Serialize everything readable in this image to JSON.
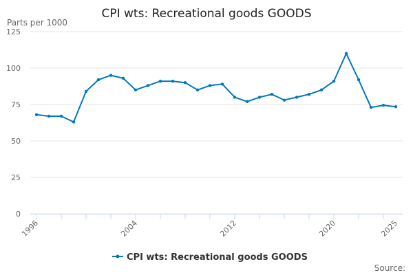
{
  "chart_data": {
    "type": "line",
    "title": "CPI wts: Recreational goods GOODS",
    "ylabel": "Parts per 1000",
    "xlabel": "",
    "source_label": "Source:",
    "ylim": [
      0,
      125
    ],
    "yticks": [
      0,
      25,
      50,
      75,
      100,
      125
    ],
    "xlim": [
      1996,
      2025
    ],
    "xticks": [
      1996,
      2004,
      2012,
      2020,
      2025
    ],
    "grid": true,
    "legend_position": "bottom",
    "color": "#0077c0",
    "series": [
      {
        "name": "CPI wts: Recreational goods GOODS",
        "x": [
          1996,
          1997,
          1998,
          1999,
          2000,
          2001,
          2002,
          2003,
          2004,
          2005,
          2006,
          2007,
          2008,
          2009,
          2010,
          2011,
          2012,
          2013,
          2014,
          2015,
          2016,
          2017,
          2018,
          2019,
          2020,
          2021,
          2022,
          2023,
          2024,
          2025
        ],
        "values": [
          68,
          67,
          67,
          63,
          84,
          92,
          95,
          93,
          85,
          88,
          91,
          91,
          90,
          85,
          88,
          89,
          80,
          77,
          80,
          82,
          78,
          80,
          82,
          85,
          91,
          110,
          92,
          73,
          74.5,
          73.5
        ]
      }
    ]
  }
}
